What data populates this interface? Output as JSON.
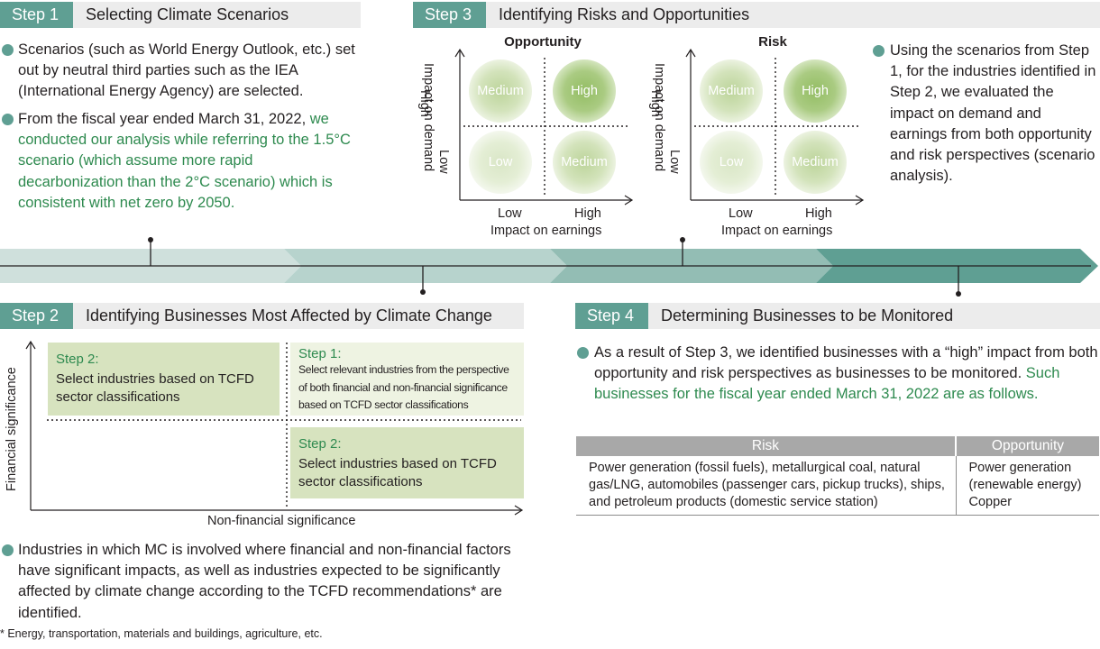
{
  "step1": {
    "tag": "Step 1",
    "title": "Selecting Climate Scenarios",
    "bullet1": "Scenarios (such as World Energy Outlook, etc.) set out by neutral third parties such as the IEA (International Energy Agency) are selected.",
    "bullet2_plain": "From the fiscal year ended March 31, 2022, ",
    "bullet2_green": "we conducted our analysis while referring to the 1.5°C scenario (which assume more rapid decarbonization than the 2°C scenario) which is consistent with net zero by 2050."
  },
  "step2": {
    "tag": "Step 2",
    "title": "Identifying Businesses Most Affected by Climate Change",
    "y_axis": "Financial significance",
    "x_axis": "Non-financial significance",
    "box_tl": {
      "title": "Step 2:",
      "body": "Select industries based on TCFD sector classifications"
    },
    "box_tr": {
      "title": "Step 1:",
      "body": "Select relevant industries from the perspective of both financial and non-financial significance based on TCFD sector classifications"
    },
    "box_br": {
      "title": "Step 2:",
      "body": "Select industries based on TCFD sector classifications"
    },
    "bullet": "Industries in which MC is involved where financial and non-financial factors have significant impacts, as well as industries expected to be significantly affected by climate change according to the TCFD recommendations* are identified.",
    "footnote": "* Energy, transportation, materials and buildings, agriculture, etc."
  },
  "step3": {
    "tag": "Step 3",
    "title": "Identifying Risks and Opportunities",
    "opportunity_title": "Opportunity",
    "risk_title": "Risk",
    "y_high": "High",
    "y_axis": "Impact on demand",
    "y_low": "Low",
    "x_low": "Low",
    "x_high": "High",
    "x_axis": "Impact on earnings",
    "q_medium": "Medium",
    "q_high": "High",
    "q_low": "Low",
    "bullet": "Using the scenarios from Step 1, for the industries identified in Step 2, we evaluated the impact on demand and earnings from both opportunity and risk perspectives (scenario analysis)."
  },
  "step4": {
    "tag": "Step 4",
    "title": "Determining Businesses to be Monitored",
    "bullet_plain": "As a result of Step 3, we identified businesses with a “high” impact from both opportunity and risk perspectives as businesses to be monitored. ",
    "bullet_green": "Such businesses for the fiscal year ended March 31, 2022 are as follows.",
    "table": {
      "risk_header": "Risk",
      "opp_header": "Opportunity",
      "risk_cell": "Power generation (fossil fuels), metallurgical coal, natural gas/LNG, automobiles (passenger cars, pickup trucks), ships, and petroleum products (domestic service station)",
      "opp_cell_1": "Power generation (renewable energy)",
      "opp_cell_2": "Copper"
    }
  },
  "colors": {
    "accent": "#5f9f93",
    "green_text": "#2e8a4f",
    "box_green": "#d7e3bf",
    "box_light": "#eef3e2"
  }
}
